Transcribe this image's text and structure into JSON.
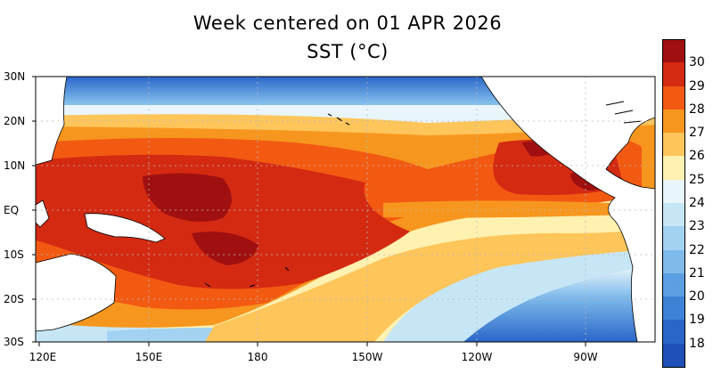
{
  "title": "Week centered on 01 APR 2026",
  "subtitle": "SST (°C)",
  "lat_labels": [
    "30N",
    "20N",
    "10N",
    "EQ",
    "10S",
    "20S",
    "30S"
  ],
  "lon_labels": [
    "120E",
    "150E",
    "180",
    "150W",
    "120W",
    "90W"
  ],
  "colorbar": {
    "ticks": [
      "30",
      "29",
      "28",
      "27",
      "26",
      "25",
      "24",
      "23",
      "22",
      "21",
      "20",
      "19",
      "18"
    ],
    "colors": [
      "#a01010",
      "#d42a12",
      "#f25a12",
      "#f7961e",
      "#fdc55a",
      "#fff1b0",
      "#e8f5fb",
      "#c6e6f6",
      "#a3d2f1",
      "#7fbaeb",
      "#5c9ee2",
      "#3e82d6",
      "#2a66c8",
      "#1e50b8"
    ]
  },
  "colors": {
    "land": "#ffffff",
    "coast": "#000000",
    "grid": "#b9b9b9"
  }
}
